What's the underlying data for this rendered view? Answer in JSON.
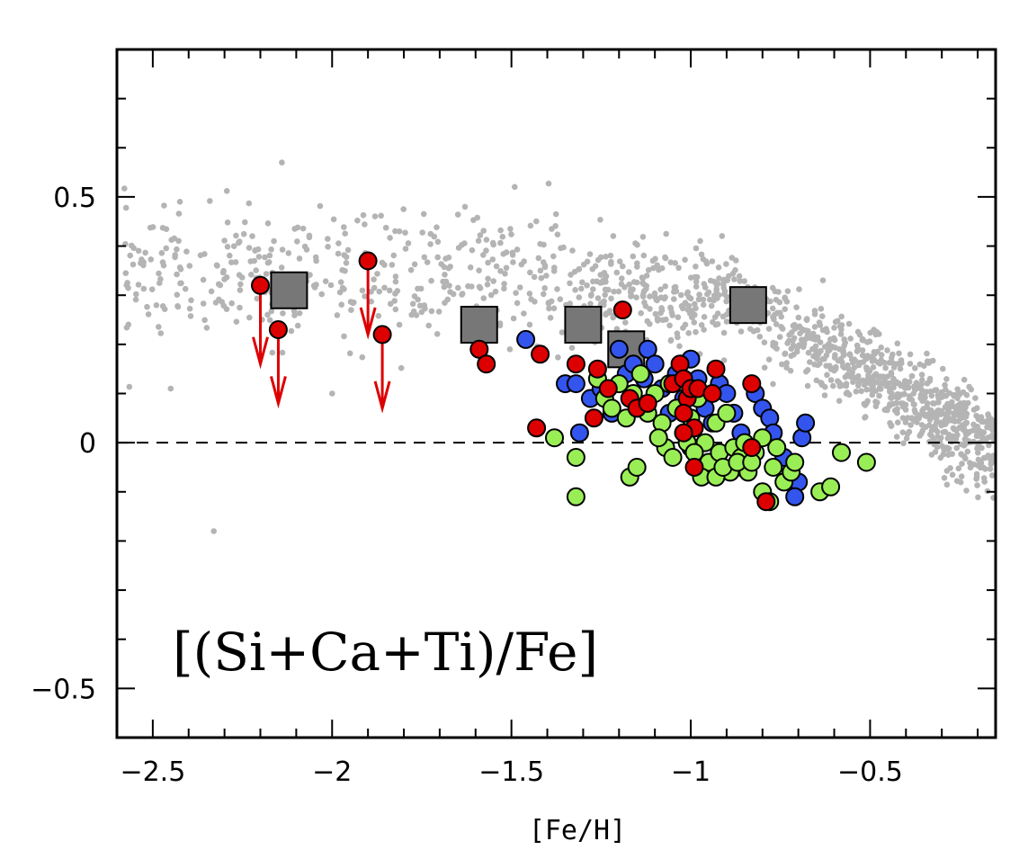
{
  "chart_data": {
    "type": "scatter",
    "title": "",
    "xlabel": "[Fe/H]",
    "ylabel": "",
    "annotation": "[(Si+Ca+Ti)/Fe]",
    "xlim": [
      -2.6,
      -0.15
    ],
    "ylim": [
      -0.6,
      0.8
    ],
    "xticks": [
      -2.5,
      -2,
      -1.5,
      -1,
      -0.5
    ],
    "xtick_labels": [
      "−2.5",
      "−2",
      "−1.5",
      "−1",
      "−0.5"
    ],
    "yticks": [
      -0.5,
      0,
      0.5
    ],
    "ytick_labels": [
      "−0.5",
      "0",
      "0.5"
    ],
    "reference_line_y": 0,
    "colors": {
      "background": "#b4b4b4",
      "red": "#dd0000",
      "blue": "#3355ee",
      "green": "#99ee55",
      "square": "#777777",
      "arrow": "#dd0000"
    },
    "series": [
      {
        "name": "background",
        "marker": "small-dot",
        "note": "dense grey field-star sample, points generated procedurally"
      },
      {
        "name": "upper-limits",
        "marker": "red-circle-with-arrow",
        "points": [
          {
            "x": -2.2,
            "y": 0.32,
            "arrow_to": 0.16
          },
          {
            "x": -2.15,
            "y": 0.23,
            "arrow_to": 0.08
          },
          {
            "x": -1.9,
            "y": 0.37,
            "arrow_to": 0.22
          },
          {
            "x": -1.86,
            "y": 0.22,
            "arrow_to": 0.07
          }
        ]
      },
      {
        "name": "squares",
        "marker": "grey-square",
        "points": [
          [
            -2.12,
            0.31
          ],
          [
            -1.59,
            0.24
          ],
          [
            -1.3,
            0.24
          ],
          [
            -1.18,
            0.19
          ],
          [
            -0.84,
            0.28
          ]
        ]
      },
      {
        "name": "red",
        "marker": "circle",
        "points": [
          [
            -1.59,
            0.19
          ],
          [
            -1.57,
            0.16
          ],
          [
            -1.42,
            0.18
          ],
          [
            -1.43,
            0.03
          ],
          [
            -1.32,
            0.16
          ],
          [
            -1.26,
            0.15
          ],
          [
            -1.27,
            0.05
          ],
          [
            -1.23,
            0.11
          ],
          [
            -1.19,
            0.27
          ],
          [
            -1.17,
            0.09
          ],
          [
            -1.15,
            0.07
          ],
          [
            -1.12,
            0.08
          ],
          [
            -1.05,
            0.12
          ],
          [
            -1.03,
            0.16
          ],
          [
            -1.02,
            0.13
          ],
          [
            -1.01,
            0.09
          ],
          [
            -1.0,
            0.11
          ],
          [
            -1.02,
            0.06
          ],
          [
            -0.99,
            0.03
          ],
          [
            -1.02,
            0.02
          ],
          [
            -0.98,
            0.11
          ],
          [
            -0.94,
            0.1
          ],
          [
            -0.93,
            0.15
          ],
          [
            -0.99,
            -0.05
          ],
          [
            -0.83,
            0.12
          ],
          [
            -0.83,
            -0.01
          ],
          [
            -0.79,
            -0.12
          ]
        ]
      },
      {
        "name": "blue",
        "marker": "circle",
        "points": [
          [
            -1.46,
            0.21
          ],
          [
            -1.35,
            0.12
          ],
          [
            -1.32,
            0.12
          ],
          [
            -1.31,
            0.02
          ],
          [
            -1.28,
            0.09
          ],
          [
            -1.25,
            0.11
          ],
          [
            -1.22,
            0.06
          ],
          [
            -1.2,
            0.19
          ],
          [
            -1.18,
            0.14
          ],
          [
            -1.16,
            0.16
          ],
          [
            -1.13,
            0.13
          ],
          [
            -1.12,
            0.19
          ],
          [
            -1.1,
            0.16
          ],
          [
            -1.08,
            0.11
          ],
          [
            -1.06,
            0.06
          ],
          [
            -1.04,
            0.14
          ],
          [
            -1.02,
            0.09
          ],
          [
            -1.0,
            0.17
          ],
          [
            -0.98,
            0.13
          ],
          [
            -0.96,
            0.07
          ],
          [
            -0.94,
            0.04
          ],
          [
            -0.92,
            0.12
          ],
          [
            -0.9,
            0.1
          ],
          [
            -0.88,
            0.06
          ],
          [
            -0.86,
            0.02
          ],
          [
            -0.82,
            0.1
          ],
          [
            -0.8,
            0.07
          ],
          [
            -0.78,
            0.05
          ],
          [
            -0.77,
            0.02
          ],
          [
            -0.74,
            -0.03
          ],
          [
            -0.72,
            -0.07
          ],
          [
            -0.7,
            -0.08
          ],
          [
            -0.69,
            0.01
          ],
          [
            -0.68,
            0.04
          ],
          [
            -0.71,
            -0.11
          ],
          [
            -1.0,
            -0.01
          ],
          [
            -0.87,
            -0.05
          ]
        ]
      },
      {
        "name": "green",
        "marker": "circle",
        "points": [
          [
            -1.38,
            0.01
          ],
          [
            -1.32,
            -0.03
          ],
          [
            -1.32,
            -0.11
          ],
          [
            -1.26,
            0.13
          ],
          [
            -1.24,
            0.09
          ],
          [
            -1.22,
            0.07
          ],
          [
            -1.2,
            0.12
          ],
          [
            -1.18,
            0.05
          ],
          [
            -1.16,
            0.1
          ],
          [
            -1.14,
            0.14
          ],
          [
            -1.12,
            0.06
          ],
          [
            -1.1,
            0.1
          ],
          [
            -1.08,
            0.04
          ],
          [
            -1.06,
            0.12
          ],
          [
            -1.04,
            0.07
          ],
          [
            -1.02,
            0.02
          ],
          [
            -1.0,
            0.05
          ],
          [
            -0.98,
            0.09
          ],
          [
            -0.96,
            0.0
          ],
          [
            -0.95,
            -0.04
          ],
          [
            -0.93,
            0.04
          ],
          [
            -0.92,
            -0.02
          ],
          [
            -0.9,
            0.06
          ],
          [
            -0.89,
            -0.06
          ],
          [
            -0.88,
            -0.01
          ],
          [
            -0.86,
            -0.03
          ],
          [
            -0.85,
            0.0
          ],
          [
            -0.84,
            -0.06
          ],
          [
            -0.82,
            -0.02
          ],
          [
            -0.8,
            0.01
          ],
          [
            -0.8,
            -0.1
          ],
          [
            -0.78,
            -0.12
          ],
          [
            -0.77,
            -0.05
          ],
          [
            -0.76,
            -0.01
          ],
          [
            -0.74,
            -0.08
          ],
          [
            -0.72,
            -0.06
          ],
          [
            -0.71,
            -0.04
          ],
          [
            -0.64,
            -0.1
          ],
          [
            -0.61,
            -0.09
          ],
          [
            -0.58,
            -0.02
          ],
          [
            -0.51,
            -0.04
          ],
          [
            -1.17,
            -0.07
          ],
          [
            -1.15,
            -0.05
          ],
          [
            -1.07,
            -0.01
          ],
          [
            -1.05,
            -0.03
          ],
          [
            -0.97,
            -0.07
          ],
          [
            -0.93,
            -0.07
          ],
          [
            -0.91,
            -0.05
          ],
          [
            -1.01,
            0.0
          ],
          [
            -1.09,
            0.01
          ],
          [
            -0.99,
            -0.02
          ],
          [
            -0.87,
            -0.04
          ],
          [
            -0.83,
            -0.04
          ]
        ]
      }
    ]
  }
}
